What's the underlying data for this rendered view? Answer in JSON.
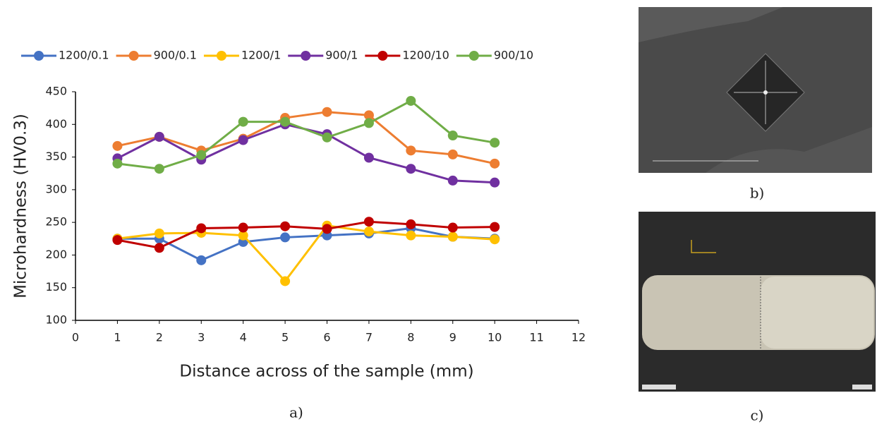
{
  "chart_data": {
    "type": "line",
    "x_label": "Distance across of the sample (mm)",
    "y_label": "Microhardness (HV0.3)",
    "x": [
      1,
      2,
      3,
      4,
      5,
      6,
      7,
      8,
      9,
      10
    ],
    "series": [
      {
        "name": "1200/0.1",
        "color": "#4472c4",
        "values": [
          225,
          225,
          192,
          220,
          227,
          230,
          233,
          241,
          228,
          225
        ]
      },
      {
        "name": "900/0.1",
        "color": "#ed7d31",
        "values": [
          367,
          381,
          360,
          378,
          410,
          419,
          414,
          360,
          354,
          340
        ]
      },
      {
        "name": "1200/1",
        "color": "#ffc000",
        "values": [
          225,
          233,
          234,
          230,
          160,
          245,
          236,
          230,
          228,
          224
        ]
      },
      {
        "name": "900/1",
        "color": "#7030a0",
        "values": [
          348,
          381,
          346,
          376,
          400,
          385,
          349,
          332,
          314,
          311
        ]
      },
      {
        "name": "1200/10",
        "color": "#c00000",
        "values": [
          223,
          211,
          241,
          242,
          244,
          240,
          251,
          247,
          242,
          243
        ]
      },
      {
        "name": "900/10",
        "color": "#70ad47",
        "values": [
          340,
          332,
          353,
          404,
          404,
          380,
          402,
          436,
          383,
          372
        ]
      }
    ],
    "xlim": [
      0,
      12
    ],
    "xticks": [
      0,
      1,
      2,
      3,
      4,
      5,
      6,
      7,
      8,
      9,
      10,
      11,
      12
    ],
    "ylim": [
      100,
      450
    ],
    "yticks": [
      100,
      150,
      200,
      250,
      300,
      350,
      400,
      450
    ],
    "grid": false,
    "legend": "top"
  },
  "captions": [
    "a)",
    "b)",
    "c)"
  ]
}
